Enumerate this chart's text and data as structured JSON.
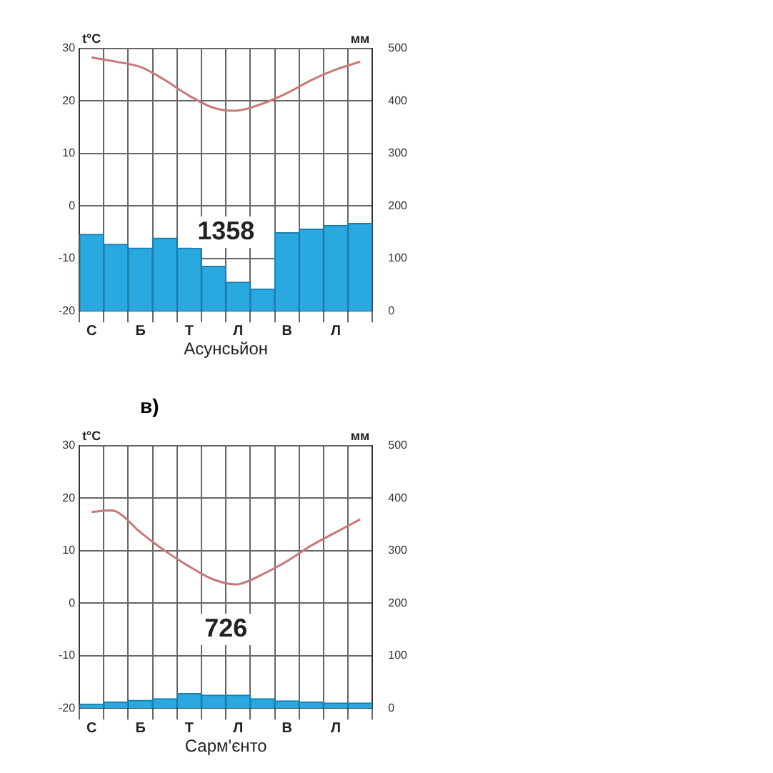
{
  "chart_data": [
    {
      "type": "bar",
      "categories": [
        "С",
        null,
        "Б",
        null,
        "Т",
        null,
        "Л",
        null,
        "В",
        null,
        "Л",
        null
      ],
      "xlabel": "Асунсьйон",
      "ylabel": "t°C",
      "y2label": "мм",
      "ylim": [
        -20,
        30
      ],
      "yticks": [
        -20,
        -10,
        0,
        10,
        20,
        30
      ],
      "y2lim": [
        0,
        500
      ],
      "y2ticks": [
        0,
        100,
        200,
        300,
        400,
        500
      ],
      "grid": true,
      "legend": false,
      "annotations": [
        "1358"
      ],
      "series": [
        {
          "axis": "y2",
          "color": "#2aa8e0",
          "values": [
            146,
            127,
            120,
            139,
            120,
            85,
            55,
            42,
            149,
            156,
            163,
            167
          ]
        },
        {
          "type": "line",
          "axis": "y",
          "color": "#c87878",
          "values": [
            28.3,
            27.5,
            26.5,
            24,
            21,
            18.7,
            18.2,
            19.5,
            21.5,
            24,
            26,
            27.5
          ]
        }
      ]
    },
    {
      "type": "bar",
      "categories": [
        "С",
        null,
        "Б",
        null,
        "Т",
        null,
        "Л",
        null,
        "В",
        null,
        "Л",
        null
      ],
      "xlabel": "Сарм'єнто",
      "ylabel": "t°C",
      "y2label": "мм",
      "ylim": [
        -20,
        30
      ],
      "yticks": [
        -20,
        -10,
        0,
        10,
        20,
        30
      ],
      "y2lim": [
        0,
        500
      ],
      "y2ticks": [
        0,
        100,
        200,
        300,
        400,
        500
      ],
      "grid": true,
      "legend": false,
      "annotations": [
        "в)",
        "726"
      ],
      "series": [
        {
          "axis": "y2",
          "color": "#2aa8e0",
          "values": [
            8,
            12,
            15,
            18,
            28,
            25,
            25,
            18,
            14,
            12,
            10,
            10
          ]
        },
        {
          "type": "line",
          "axis": "y",
          "color": "#c87878",
          "values": [
            17.4,
            17.5,
            13.5,
            10,
            7,
            4.5,
            3.6,
            5.5,
            8,
            11,
            13.5,
            16
          ]
        }
      ]
    }
  ]
}
